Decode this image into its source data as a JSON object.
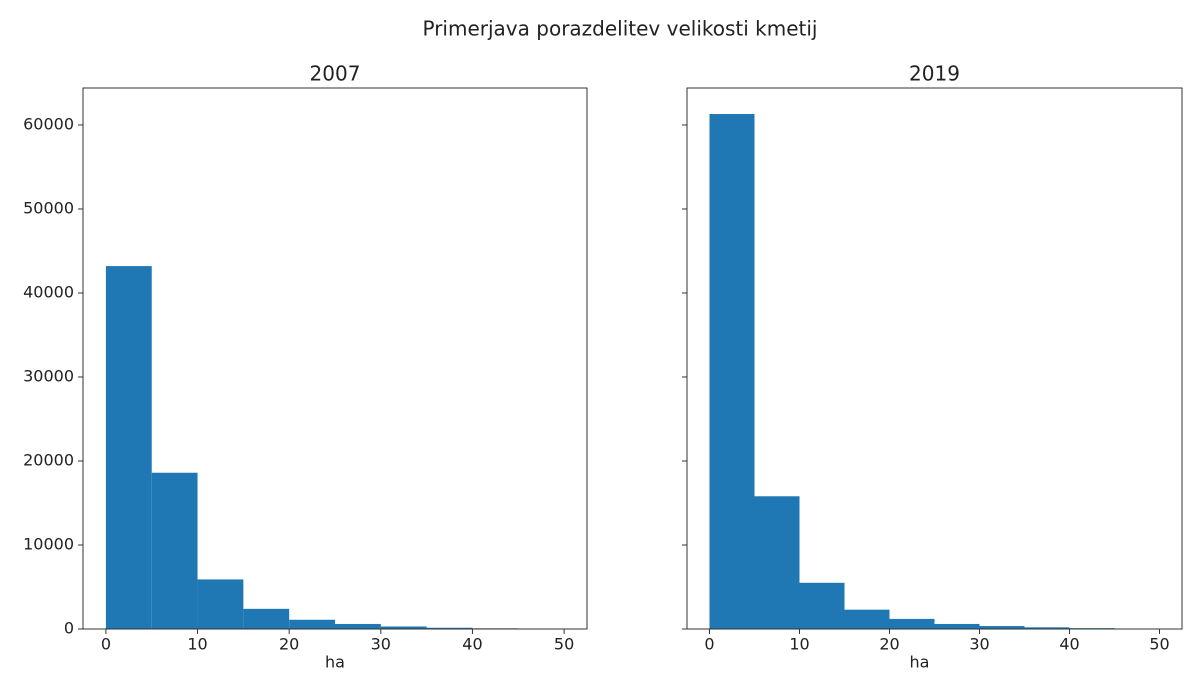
{
  "title": "Primerjava porazdelitev velikosti kmetij",
  "chart_data": [
    {
      "type": "histogram",
      "title": "2007",
      "x_label": "ha",
      "color": "#1f77b4",
      "bins": [
        0,
        5,
        10,
        15,
        20,
        25,
        30,
        35,
        40,
        45,
        50
      ],
      "counts": [
        43200,
        18600,
        5900,
        2400,
        1100,
        600,
        300,
        150,
        80,
        50
      ],
      "xlim": [
        -2.5,
        52.5
      ],
      "xticks": [
        0,
        10,
        20,
        30,
        40,
        50
      ],
      "ylim": [
        0,
        64400
      ],
      "yticks": [
        0,
        10000,
        20000,
        30000,
        40000,
        50000,
        60000
      ],
      "ytick_labels": true
    },
    {
      "type": "histogram",
      "title": "2019",
      "x_label": "ha",
      "color": "#1f77b4",
      "bins": [
        0,
        5,
        10,
        15,
        20,
        25,
        30,
        35,
        40,
        45,
        50
      ],
      "counts": [
        61300,
        15800,
        5500,
        2300,
        1200,
        600,
        350,
        200,
        100,
        60
      ],
      "xlim": [
        -2.5,
        52.5
      ],
      "xticks": [
        0,
        10,
        20,
        30,
        40,
        50
      ],
      "ylim": [
        0,
        64400
      ],
      "yticks": [
        0,
        10000,
        20000,
        30000,
        40000,
        50000,
        60000
      ],
      "ytick_labels": false
    }
  ]
}
